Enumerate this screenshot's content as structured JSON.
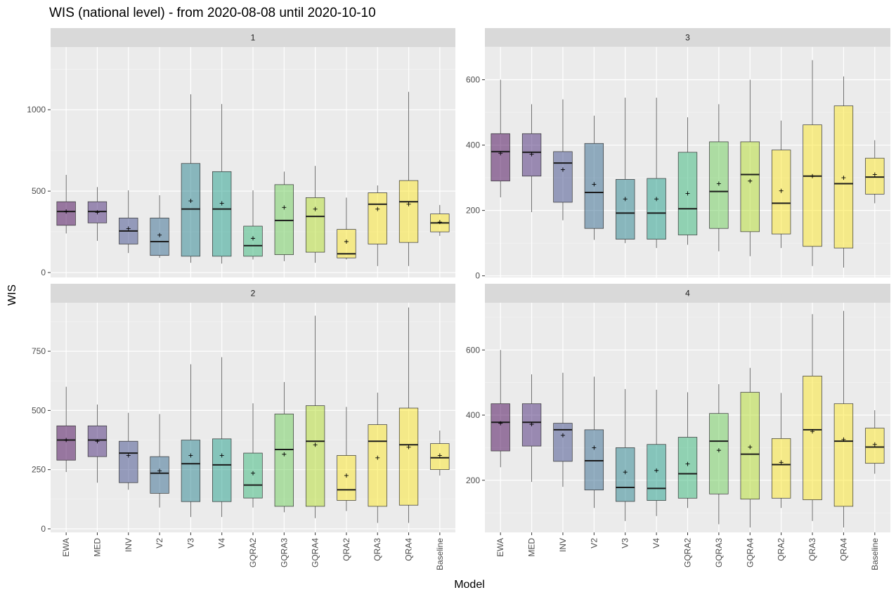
{
  "chart_data": {
    "type": "box",
    "title": "WIS (national level) - from 2020-08-08 until 2020-10-10",
    "xlabel": "Model",
    "ylabel": "WIS",
    "categories": [
      "EWA",
      "MED",
      "INV",
      "V2",
      "V3",
      "V4",
      "GQRA2",
      "GQRA3",
      "GQRA4",
      "QRA2",
      "QRA3",
      "QRA4",
      "Baseline"
    ],
    "colors": [
      "#440154",
      "#482878",
      "#3E4A89",
      "#31688E",
      "#26828E",
      "#1F9E89",
      "#35B779",
      "#6DCD59",
      "#B4DE2C",
      "#FDE725",
      "#FDE725",
      "#FDE725",
      "#FDE725"
    ],
    "grid": true,
    "legend": "none",
    "panels": [
      {
        "label": "1",
        "ylim": [
          -30,
          1385
        ],
        "yticks": [
          0,
          500,
          1000
        ],
        "boxes": [
          {
            "min": 240,
            "q1": 290,
            "median": 375,
            "q3": 435,
            "max": 600,
            "mean": 375
          },
          {
            "min": 195,
            "q1": 305,
            "median": 375,
            "q3": 435,
            "max": 525,
            "mean": 370
          },
          {
            "min": 120,
            "q1": 175,
            "median": 255,
            "q3": 335,
            "max": 505,
            "mean": 270
          },
          {
            "min": 90,
            "q1": 105,
            "median": 190,
            "q3": 335,
            "max": 475,
            "mean": 230
          },
          {
            "min": 60,
            "q1": 100,
            "median": 390,
            "q3": 670,
            "max": 1095,
            "mean": 440
          },
          {
            "min": 55,
            "q1": 100,
            "median": 390,
            "q3": 620,
            "max": 1035,
            "mean": 425
          },
          {
            "min": 80,
            "q1": 100,
            "median": 165,
            "q3": 285,
            "max": 505,
            "mean": 210
          },
          {
            "min": 70,
            "q1": 110,
            "median": 320,
            "q3": 540,
            "max": 620,
            "mean": 400
          },
          {
            "min": 60,
            "q1": 125,
            "median": 345,
            "q3": 460,
            "max": 655,
            "mean": 390
          },
          {
            "min": 80,
            "q1": 90,
            "median": 115,
            "q3": 265,
            "max": 460,
            "mean": 190
          },
          {
            "min": 40,
            "q1": 175,
            "median": 420,
            "q3": 490,
            "max": 535,
            "mean": 390
          },
          {
            "min": 40,
            "q1": 185,
            "median": 435,
            "q3": 565,
            "max": 1110,
            "mean": 420
          },
          {
            "min": 225,
            "q1": 250,
            "median": 305,
            "q3": 360,
            "max": 415,
            "mean": 310
          }
        ]
      },
      {
        "label": "3",
        "ylim": [
          -5,
          700
        ],
        "yticks": [
          0,
          200,
          400,
          600
        ],
        "boxes": [
          {
            "min": 240,
            "q1": 290,
            "median": 380,
            "q3": 435,
            "max": 600,
            "mean": 375
          },
          {
            "min": 195,
            "q1": 305,
            "median": 378,
            "q3": 435,
            "max": 525,
            "mean": 372
          },
          {
            "min": 170,
            "q1": 225,
            "median": 345,
            "q3": 380,
            "max": 540,
            "mean": 325
          },
          {
            "min": 110,
            "q1": 145,
            "median": 255,
            "q3": 405,
            "max": 490,
            "mean": 280
          },
          {
            "min": 100,
            "q1": 112,
            "median": 192,
            "q3": 295,
            "max": 545,
            "mean": 235
          },
          {
            "min": 85,
            "q1": 112,
            "median": 192,
            "q3": 298,
            "max": 545,
            "mean": 235
          },
          {
            "min": 95,
            "q1": 125,
            "median": 205,
            "q3": 378,
            "max": 485,
            "mean": 252
          },
          {
            "min": 75,
            "q1": 145,
            "median": 258,
            "q3": 410,
            "max": 525,
            "mean": 282
          },
          {
            "min": 60,
            "q1": 135,
            "median": 310,
            "q3": 410,
            "max": 600,
            "mean": 290
          },
          {
            "min": 85,
            "q1": 128,
            "median": 222,
            "q3": 385,
            "max": 475,
            "mean": 260
          },
          {
            "min": 30,
            "q1": 90,
            "median": 305,
            "q3": 462,
            "max": 660,
            "mean": 305
          },
          {
            "min": 25,
            "q1": 85,
            "median": 282,
            "q3": 520,
            "max": 610,
            "mean": 300
          },
          {
            "min": 222,
            "q1": 250,
            "median": 302,
            "q3": 360,
            "max": 415,
            "mean": 310
          }
        ]
      },
      {
        "label": "2",
        "ylim": [
          -15,
          955
        ],
        "yticks": [
          0,
          250,
          500,
          750
        ],
        "boxes": [
          {
            "min": 240,
            "q1": 290,
            "median": 375,
            "q3": 435,
            "max": 600,
            "mean": 375
          },
          {
            "min": 195,
            "q1": 305,
            "median": 375,
            "q3": 435,
            "max": 525,
            "mean": 370
          },
          {
            "min": 165,
            "q1": 195,
            "median": 320,
            "q3": 370,
            "max": 490,
            "mean": 310
          },
          {
            "min": 90,
            "q1": 150,
            "median": 235,
            "q3": 305,
            "max": 485,
            "mean": 245
          },
          {
            "min": 50,
            "q1": 115,
            "median": 275,
            "q3": 375,
            "max": 695,
            "mean": 310
          },
          {
            "min": 50,
            "q1": 115,
            "median": 270,
            "q3": 380,
            "max": 725,
            "mean": 310
          },
          {
            "min": 90,
            "q1": 130,
            "median": 185,
            "q3": 320,
            "max": 530,
            "mean": 235
          },
          {
            "min": 70,
            "q1": 95,
            "median": 335,
            "q3": 485,
            "max": 620,
            "mean": 315
          },
          {
            "min": 45,
            "q1": 95,
            "median": 370,
            "q3": 520,
            "max": 900,
            "mean": 355
          },
          {
            "min": 75,
            "q1": 120,
            "median": 165,
            "q3": 310,
            "max": 515,
            "mean": 225
          },
          {
            "min": 25,
            "q1": 95,
            "median": 370,
            "q3": 440,
            "max": 575,
            "mean": 300
          },
          {
            "min": 25,
            "q1": 100,
            "median": 355,
            "q3": 510,
            "max": 935,
            "mean": 345
          },
          {
            "min": 225,
            "q1": 250,
            "median": 300,
            "q3": 360,
            "max": 415,
            "mean": 310
          }
        ]
      },
      {
        "label": "4",
        "ylim": [
          40,
          745
        ],
        "yticks": [
          200,
          400,
          600
        ],
        "boxes": [
          {
            "min": 240,
            "q1": 290,
            "median": 378,
            "q3": 435,
            "max": 600,
            "mean": 375
          },
          {
            "min": 195,
            "q1": 305,
            "median": 378,
            "q3": 435,
            "max": 525,
            "mean": 372
          },
          {
            "min": 180,
            "q1": 258,
            "median": 355,
            "q3": 375,
            "max": 530,
            "mean": 338
          },
          {
            "min": 115,
            "q1": 170,
            "median": 260,
            "q3": 355,
            "max": 518,
            "mean": 300
          },
          {
            "min": 75,
            "q1": 135,
            "median": 178,
            "q3": 300,
            "max": 480,
            "mean": 225
          },
          {
            "min": 90,
            "q1": 138,
            "median": 175,
            "q3": 310,
            "max": 478,
            "mean": 230
          },
          {
            "min": 115,
            "q1": 145,
            "median": 220,
            "q3": 332,
            "max": 470,
            "mean": 250
          },
          {
            "min": 65,
            "q1": 158,
            "median": 320,
            "q3": 405,
            "max": 495,
            "mean": 292
          },
          {
            "min": 55,
            "q1": 142,
            "median": 280,
            "q3": 470,
            "max": 545,
            "mean": 302
          },
          {
            "min": 115,
            "q1": 145,
            "median": 248,
            "q3": 328,
            "max": 468,
            "mean": 255
          },
          {
            "min": 75,
            "q1": 140,
            "median": 355,
            "q3": 520,
            "max": 710,
            "mean": 350
          },
          {
            "min": 55,
            "q1": 120,
            "median": 320,
            "q3": 435,
            "max": 720,
            "mean": 325
          },
          {
            "min": 220,
            "q1": 252,
            "median": 302,
            "q3": 360,
            "max": 415,
            "mean": 310
          }
        ]
      }
    ]
  }
}
